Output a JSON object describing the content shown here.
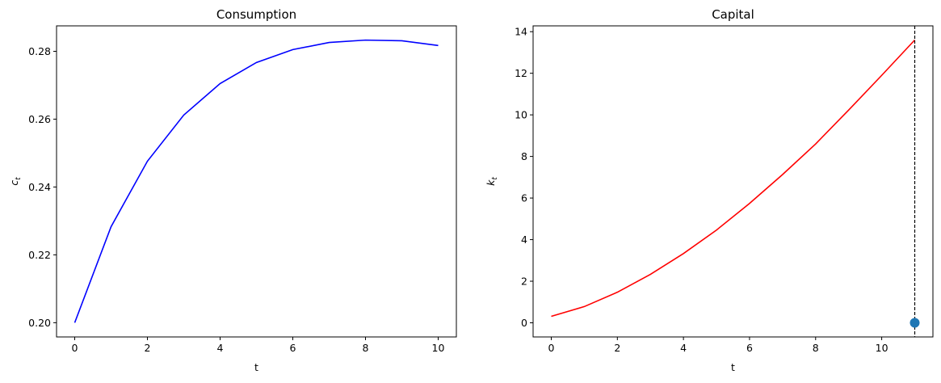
{
  "chart_data": [
    {
      "type": "line",
      "title": "Consumption",
      "xlabel": "t",
      "ylabel": "c",
      "ylabel_sub": "t",
      "x": [
        0,
        1,
        2,
        3,
        4,
        5,
        6,
        7,
        8,
        9,
        10
      ],
      "series": [
        {
          "color": "#0000ff",
          "values": [
            0.2,
            0.2283,
            0.2476,
            0.2612,
            0.2705,
            0.2767,
            0.2805,
            0.2826,
            0.2833,
            0.2831,
            0.2817
          ]
        }
      ],
      "xlim": [
        -0.5,
        10.5
      ],
      "xticks": [
        0,
        2,
        4,
        6,
        8,
        10
      ],
      "ylim": [
        0.1958,
        0.2875
      ],
      "yticks": [
        {
          "value": 0.2,
          "label": "0.20"
        },
        0.22,
        0.24,
        0.26,
        0.28
      ],
      "grid": false
    },
    {
      "type": "line",
      "title": "Capital",
      "xlabel": "t",
      "ylabel": "k",
      "ylabel_sub": "t",
      "x": [
        0,
        1,
        2,
        3,
        4,
        5,
        6,
        7,
        8,
        9,
        10,
        11
      ],
      "series": [
        {
          "color": "#ff0000",
          "values": [
            0.31,
            0.78,
            1.47,
            2.33,
            3.33,
            4.46,
            5.74,
            7.13,
            8.6,
            10.23,
            11.9,
            13.6
          ]
        }
      ],
      "markers": [
        {
          "x": 11,
          "y": 0,
          "color": "#1f77b4"
        }
      ],
      "vlines": [
        {
          "x": 11,
          "color": "#000000",
          "dashed": true
        }
      ],
      "xlim": [
        -0.55,
        11.55
      ],
      "xticks": [
        0,
        2,
        4,
        6,
        8,
        10
      ],
      "ylim": [
        -0.68,
        14.28
      ],
      "yticks": [
        0,
        2,
        4,
        6,
        8,
        10,
        12,
        14
      ],
      "grid": false
    }
  ]
}
